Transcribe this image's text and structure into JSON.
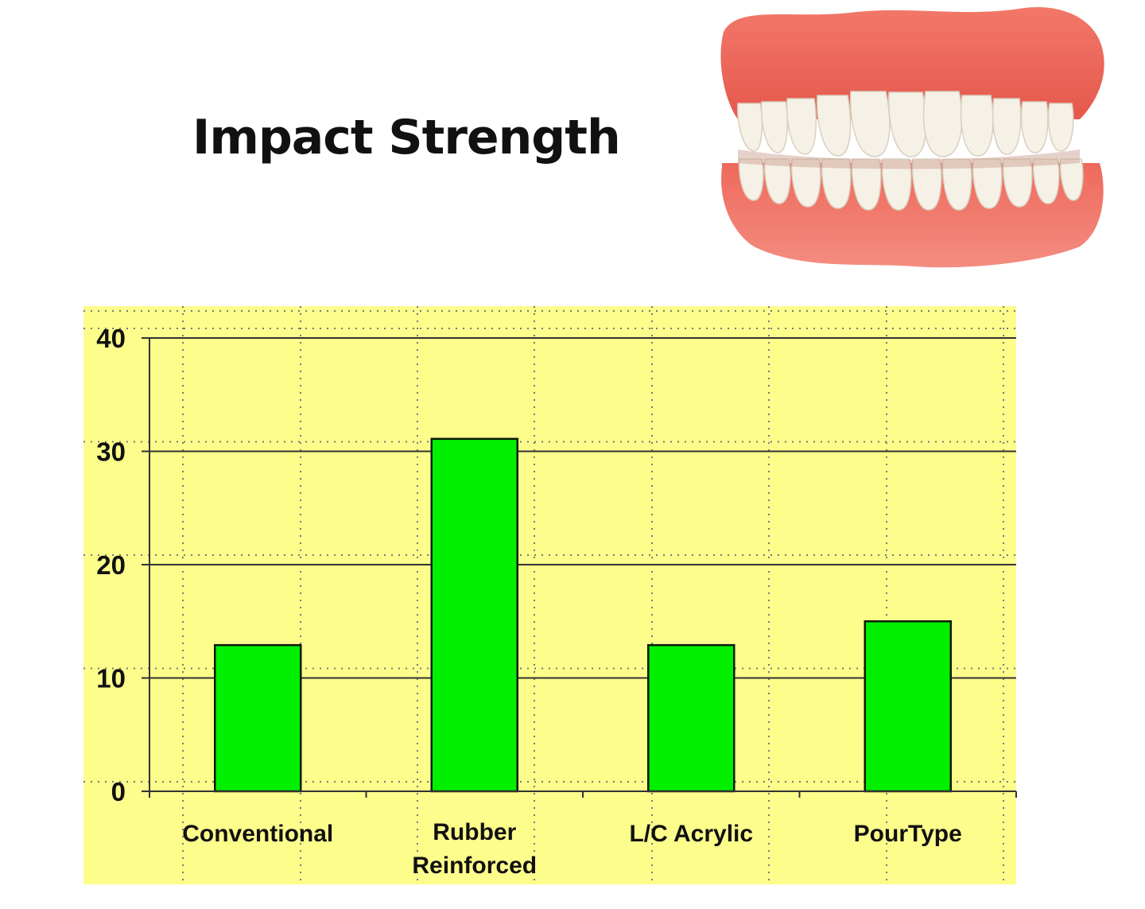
{
  "slide": {
    "title": "Impact Strength"
  },
  "illustration": {
    "icon": "dentures-icon"
  },
  "colors": {
    "plot_background": "#fdfd8c",
    "bar_fill": "#00f000",
    "bar_stroke": "#0a1a0a",
    "gridline": "#333333",
    "title": "#111111"
  },
  "chart_data": {
    "type": "bar",
    "title": "",
    "xlabel": "",
    "ylabel": "",
    "categories": [
      "Conventional",
      "Rubber Reinforced",
      "L/C Acrylic",
      "PourType"
    ],
    "category_lines": [
      [
        "Conventional"
      ],
      [
        "Rubber",
        "Reinforced"
      ],
      [
        "L/C Acrylic"
      ],
      [
        "PourType"
      ]
    ],
    "values": [
      12.9,
      31.1,
      12.9,
      15
    ],
    "ylim": [
      0,
      40
    ],
    "yticks": [
      0,
      10,
      20,
      30,
      40
    ],
    "grid": true,
    "legend": "none"
  }
}
